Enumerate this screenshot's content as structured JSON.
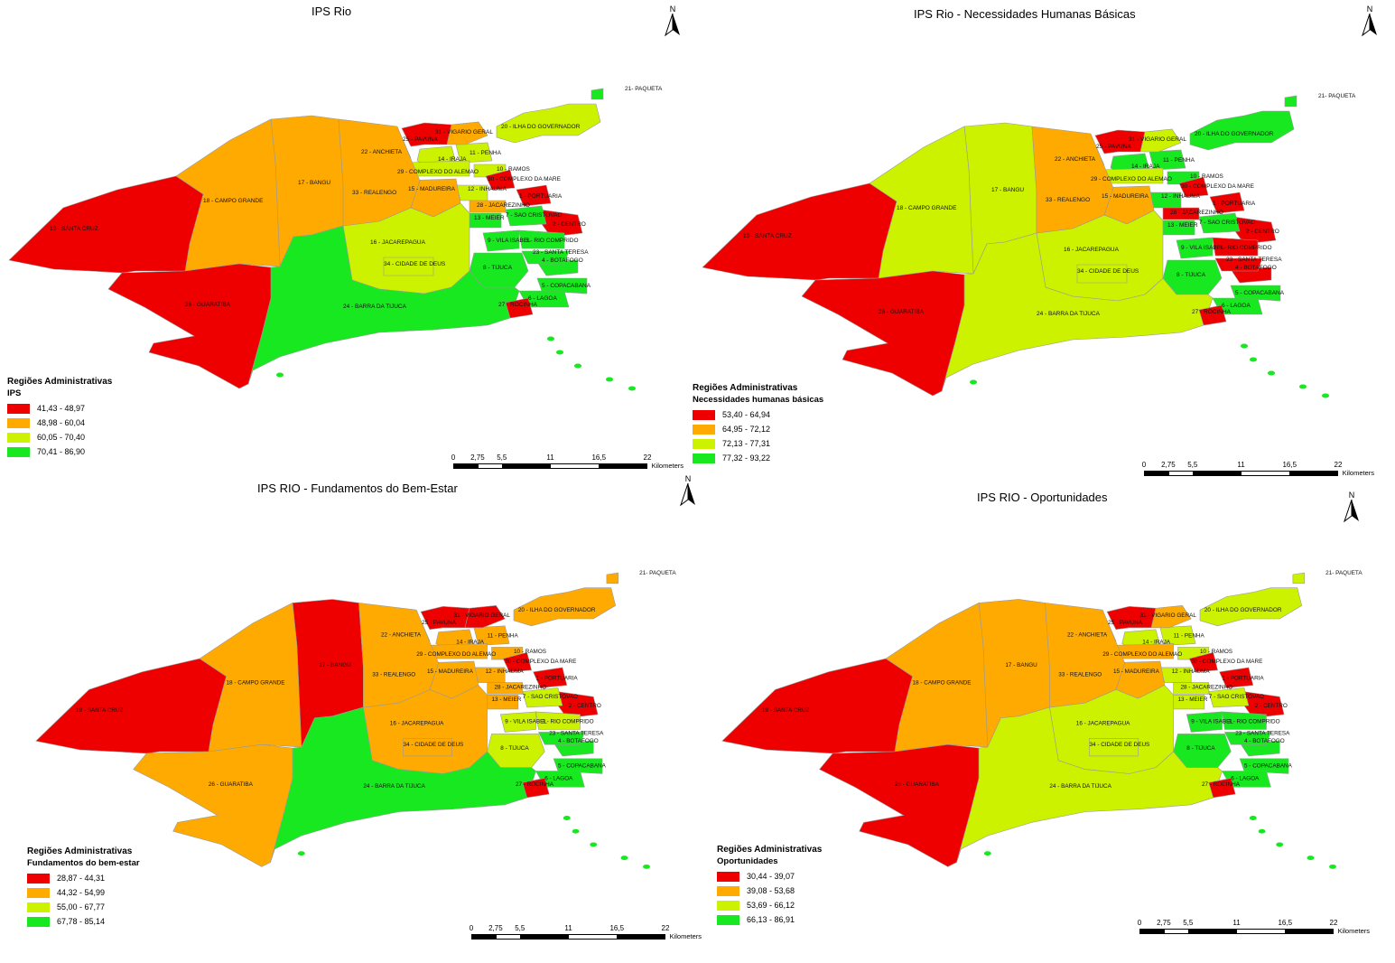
{
  "labels": [
    "19 - SANTA CRUZ",
    "26 - GUARATIBA",
    "18 - CAMPO GRANDE",
    "17 - BANGU",
    "33 - REALENGO",
    "16 - JACAREPAGUA",
    "34 - CIDADE DE DEUS",
    "24 - BARRA DA TIJUCA",
    "22 - ANCHIETA",
    "25 - PAVUNA",
    "31 - VIGARIO GERAL",
    "20 - ILHA DO GOVERNADOR",
    "21- PAQUETA",
    "14 - IRAJA",
    "11 - PENHA",
    "29 - COMPLEXO DO ALEMAO",
    "10 - RAMOS",
    "30 - COMPLEXO DA MARE",
    "15 - MADUREIRA",
    "12 - INHAUMA",
    "1 - PORTUARIA",
    "28 - JACAREZINHO",
    "13 - MEIER",
    "7 - SAO CRISTOVAO",
    "2 - CENTRO",
    "9 - VILA ISABEL",
    "3 - RIO COMPRIDO",
    "23 - SANTA TERESA",
    "4 - BOTAFOGO",
    "8 - TIJUCA",
    "5 - COPACABANA",
    "6 - LAGOA",
    "27 - ROCINHA"
  ],
  "colors": {
    "red": "#ee0000",
    "orange": "#ffaa00",
    "yellow": "#ccf200",
    "green": "#18e820"
  },
  "scale": {
    "ticks": [
      "0",
      "2,75",
      "5,5",
      "11",
      "16,5",
      "22"
    ],
    "unit": "Kilometers"
  },
  "north_symbol": "N",
  "panels": [
    {
      "title": "IPS Rio",
      "legend_title": "Regiões Administrativas",
      "legend_subtitle": "IPS",
      "classes": [
        {
          "label": "41,43 - 48,97",
          "color": "#ee0000"
        },
        {
          "label": "48,98 - 60,04",
          "color": "#ffaa00"
        },
        {
          "label": "60,05 - 70,40",
          "color": "#ccf200"
        },
        {
          "label": "70,41 - 86,90",
          "color": "#18e820"
        }
      ],
      "region_class": {
        "19": 0,
        "26": 0,
        "18": 1,
        "17": 1,
        "33": 1,
        "16": 2,
        "34": 2,
        "24": 3,
        "22": 1,
        "25": 0,
        "31": 1,
        "20": 2,
        "21": 3,
        "14": 2,
        "11": 2,
        "29": 2,
        "10": 2,
        "30": 0,
        "15": 1,
        "12": 2,
        "1": 0,
        "28": 1,
        "13": 3,
        "7": 3,
        "2": 0,
        "9": 3,
        "3": 3,
        "23": 3,
        "4": 3,
        "8": 3,
        "5": 3,
        "6": 3,
        "27": 0
      }
    },
    {
      "title": "IPS Rio - Necessidades Humanas Básicas",
      "legend_title": "Regiões Administrativas",
      "legend_subtitle": "Necessidades humanas básicas",
      "classes": [
        {
          "label": "53,40 - 64,94",
          "color": "#ee0000"
        },
        {
          "label": "64,95 - 72,12",
          "color": "#ffaa00"
        },
        {
          "label": "72,13 - 77,31",
          "color": "#ccf200"
        },
        {
          "label": "77,32 - 93,22",
          "color": "#18e820"
        }
      ],
      "region_class": {
        "19": 0,
        "26": 0,
        "18": 2,
        "17": 2,
        "33": 1,
        "16": 2,
        "34": 2,
        "24": 2,
        "22": 1,
        "25": 0,
        "31": 2,
        "20": 3,
        "21": 3,
        "14": 3,
        "11": 3,
        "29": 2,
        "10": 3,
        "30": 0,
        "15": 1,
        "12": 3,
        "1": 0,
        "28": 0,
        "13": 3,
        "7": 3,
        "2": 0,
        "9": 3,
        "3": 0,
        "23": 0,
        "4": 0,
        "8": 3,
        "5": 3,
        "6": 3,
        "27": 0
      }
    },
    {
      "title": "IPS RIO - Fundamentos do Bem-Estar",
      "legend_title": "Regiões Administrativas",
      "legend_subtitle": "Fundamentos do bem-estar",
      "classes": [
        {
          "label": "28,87 - 44,31",
          "color": "#ee0000"
        },
        {
          "label": "44,32 - 54,99",
          "color": "#ffaa00"
        },
        {
          "label": "55,00 - 67,77",
          "color": "#ccf200"
        },
        {
          "label": "67,78 - 85,14",
          "color": "#18e820"
        }
      ],
      "region_class": {
        "19": 0,
        "26": 1,
        "18": 1,
        "17": 0,
        "33": 1,
        "16": 1,
        "34": 1,
        "24": 3,
        "22": 1,
        "25": 0,
        "31": 0,
        "20": 1,
        "21": 1,
        "14": 1,
        "11": 1,
        "29": 1,
        "10": 1,
        "30": 0,
        "15": 1,
        "12": 1,
        "1": 0,
        "28": 1,
        "13": 1,
        "7": 2,
        "2": 0,
        "9": 2,
        "3": 2,
        "23": 3,
        "4": 3,
        "8": 2,
        "5": 3,
        "6": 3,
        "27": 0
      }
    },
    {
      "title": "IPS RIO - Oportunidades",
      "legend_title": "Regiões Administrativas",
      "legend_subtitle": "Oportunidades",
      "classes": [
        {
          "label": "30,44 - 39,07",
          "color": "#ee0000"
        },
        {
          "label": "39,08 - 53,68",
          "color": "#ffaa00"
        },
        {
          "label": "53,69 - 66,12",
          "color": "#ccf200"
        },
        {
          "label": "66,13 - 86,91",
          "color": "#18e820"
        }
      ],
      "region_class": {
        "19": 0,
        "26": 0,
        "18": 1,
        "17": 1,
        "33": 1,
        "16": 2,
        "34": 2,
        "24": 2,
        "22": 1,
        "25": 0,
        "31": 1,
        "20": 2,
        "21": 2,
        "14": 2,
        "11": 2,
        "29": 1,
        "10": 2,
        "30": 0,
        "15": 1,
        "12": 2,
        "1": 0,
        "28": 2,
        "13": 2,
        "7": 2,
        "2": 0,
        "9": 3,
        "3": 3,
        "23": 3,
        "4": 3,
        "8": 3,
        "5": 3,
        "6": 3,
        "27": 0
      }
    }
  ]
}
